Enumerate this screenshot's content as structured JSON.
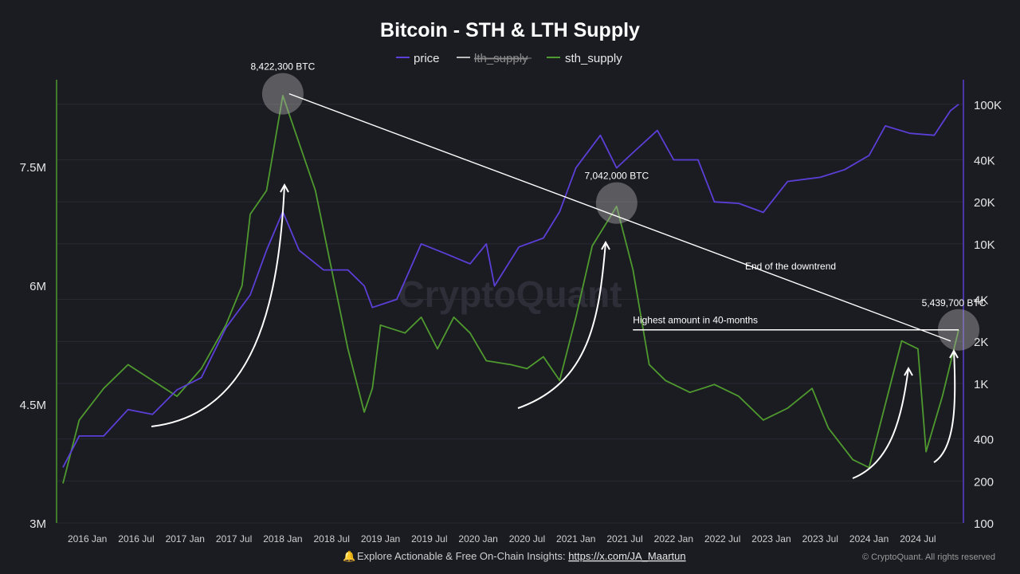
{
  "chart_data": {
    "type": "line",
    "title": "Bitcoin - STH & LTH Supply",
    "legend": {
      "placement": "top-center",
      "items": [
        {
          "label": "price",
          "color": "#5b3fd6",
          "hidden": false
        },
        {
          "label": "lth_supply",
          "color": "#9a9a9a",
          "hidden": true
        },
        {
          "label": "sth_supply",
          "color": "#4f9a2e",
          "hidden": false
        }
      ]
    },
    "x_ticks": [
      "2016 Jan",
      "2016 Jul",
      "2017 Jan",
      "2017 Jul",
      "2018 Jan",
      "2018 Jul",
      "2019 Jan",
      "2019 Jul",
      "2020 Jan",
      "2020 Jul",
      "2021 Jan",
      "2021 Jul",
      "2022 Jan",
      "2022 Jul",
      "2023 Jan",
      "2023 Jul",
      "2024 Jan",
      "2024 Jul"
    ],
    "xlim": [
      "2015-10",
      "2024-12"
    ],
    "y_left": {
      "ticks": [
        "3M",
        "4.5M",
        "6M",
        "7.5M"
      ],
      "values": [
        3000000,
        4500000,
        6000000,
        7500000
      ],
      "ylim": [
        3000000,
        8600000
      ],
      "series": "sth_supply"
    },
    "y_right": {
      "ticks": [
        "100",
        "200",
        "400",
        "1K",
        "2K",
        "4K",
        "10K",
        "20K",
        "40K",
        "100K"
      ],
      "values": [
        100,
        200,
        400,
        1000,
        2000,
        4000,
        10000,
        20000,
        40000,
        100000
      ],
      "scale": "log",
      "ylim": [
        100,
        150000
      ],
      "series": "price"
    },
    "grid": true,
    "series": [
      {
        "name": "sth_supply",
        "color": "#4f9a2e",
        "axis": "left",
        "points": [
          [
            "2015-10",
            3500000
          ],
          [
            "2015-12",
            4300000
          ],
          [
            "2016-03",
            4700000
          ],
          [
            "2016-06",
            5000000
          ],
          [
            "2016-09",
            4800000
          ],
          [
            "2016-12",
            4600000
          ],
          [
            "2017-03",
            4950000
          ],
          [
            "2017-06",
            5500000
          ],
          [
            "2017-08",
            6000000
          ],
          [
            "2017-09",
            6900000
          ],
          [
            "2017-11",
            7200000
          ],
          [
            "2018-01",
            8400000
          ],
          [
            "2018-03",
            7800000
          ],
          [
            "2018-05",
            7200000
          ],
          [
            "2018-07",
            6200000
          ],
          [
            "2018-09",
            5200000
          ],
          [
            "2018-11",
            4400000
          ],
          [
            "2018-12",
            4700000
          ],
          [
            "2019-01",
            5500000
          ],
          [
            "2019-04",
            5400000
          ],
          [
            "2019-06",
            5600000
          ],
          [
            "2019-08",
            5200000
          ],
          [
            "2019-10",
            5600000
          ],
          [
            "2019-12",
            5400000
          ],
          [
            "2020-02",
            5050000
          ],
          [
            "2020-05",
            5000000
          ],
          [
            "2020-07",
            4950000
          ],
          [
            "2020-09",
            5100000
          ],
          [
            "2020-11",
            4800000
          ],
          [
            "2021-01",
            5600000
          ],
          [
            "2021-03",
            6500000
          ],
          [
            "2021-06",
            7000000
          ],
          [
            "2021-08",
            6200000
          ],
          [
            "2021-10",
            5000000
          ],
          [
            "2021-12",
            4800000
          ],
          [
            "2022-03",
            4650000
          ],
          [
            "2022-06",
            4750000
          ],
          [
            "2022-09",
            4600000
          ],
          [
            "2022-12",
            4300000
          ],
          [
            "2023-03",
            4450000
          ],
          [
            "2023-06",
            4700000
          ],
          [
            "2023-08",
            4200000
          ],
          [
            "2023-11",
            3800000
          ],
          [
            "2024-01",
            3700000
          ],
          [
            "2024-03",
            4500000
          ],
          [
            "2024-05",
            5300000
          ],
          [
            "2024-07",
            5200000
          ],
          [
            "2024-08",
            3900000
          ],
          [
            "2024-10",
            4600000
          ],
          [
            "2024-12",
            5440000
          ]
        ]
      },
      {
        "name": "price",
        "color": "#5b3fd6",
        "axis": "right",
        "points": [
          [
            "2015-10",
            250
          ],
          [
            "2015-12",
            420
          ],
          [
            "2016-03",
            420
          ],
          [
            "2016-06",
            650
          ],
          [
            "2016-09",
            600
          ],
          [
            "2016-12",
            900
          ],
          [
            "2017-03",
            1100
          ],
          [
            "2017-06",
            2500
          ],
          [
            "2017-09",
            4300
          ],
          [
            "2017-11",
            9000
          ],
          [
            "2018-01",
            17000
          ],
          [
            "2018-03",
            9000
          ],
          [
            "2018-06",
            6500
          ],
          [
            "2018-09",
            6500
          ],
          [
            "2018-11",
            5000
          ],
          [
            "2018-12",
            3500
          ],
          [
            "2019-03",
            4000
          ],
          [
            "2019-06",
            10000
          ],
          [
            "2019-09",
            8500
          ],
          [
            "2019-12",
            7200
          ],
          [
            "2020-02",
            10000
          ],
          [
            "2020-03",
            5000
          ],
          [
            "2020-06",
            9500
          ],
          [
            "2020-09",
            11000
          ],
          [
            "2020-11",
            17000
          ],
          [
            "2021-01",
            35000
          ],
          [
            "2021-04",
            60000
          ],
          [
            "2021-06",
            35000
          ],
          [
            "2021-08",
            45000
          ],
          [
            "2021-11",
            65000
          ],
          [
            "2022-01",
            40000
          ],
          [
            "2022-04",
            40000
          ],
          [
            "2022-06",
            20000
          ],
          [
            "2022-09",
            19500
          ],
          [
            "2022-12",
            16800
          ],
          [
            "2023-03",
            28000
          ],
          [
            "2023-07",
            30000
          ],
          [
            "2023-10",
            34000
          ],
          [
            "2024-01",
            43000
          ],
          [
            "2024-03",
            70000
          ],
          [
            "2024-06",
            62000
          ],
          [
            "2024-09",
            60000
          ],
          [
            "2024-11",
            90000
          ],
          [
            "2024-12",
            100000
          ]
        ]
      }
    ],
    "annotations": [
      {
        "type": "label",
        "text": "8,422,300 BTC",
        "date": "2018-01",
        "value": 8422300
      },
      {
        "type": "label",
        "text": "7,042,000 BTC",
        "date": "2021-06",
        "value": 7042000
      },
      {
        "type": "label",
        "text": "5,439,700 BTC",
        "date": "2024-12",
        "value": 5439700
      },
      {
        "type": "trendline",
        "text": "End of the downtrend",
        "from": [
          "2018-01",
          8422300
        ],
        "to": [
          "2024-12",
          5440000
        ]
      },
      {
        "type": "hline",
        "text": "Highest amount in 40-months",
        "from": "2021-08",
        "to": "2024-12",
        "value": 5440000
      }
    ]
  },
  "footer": {
    "bell_icon": "bell-icon",
    "text": "Explore Actionable & Free On-Chain Insights: ",
    "link": "https://x.com/JA_Maartun",
    "copyright": "© CryptoQuant. All rights reserved"
  },
  "watermark": "CryptoQuant"
}
